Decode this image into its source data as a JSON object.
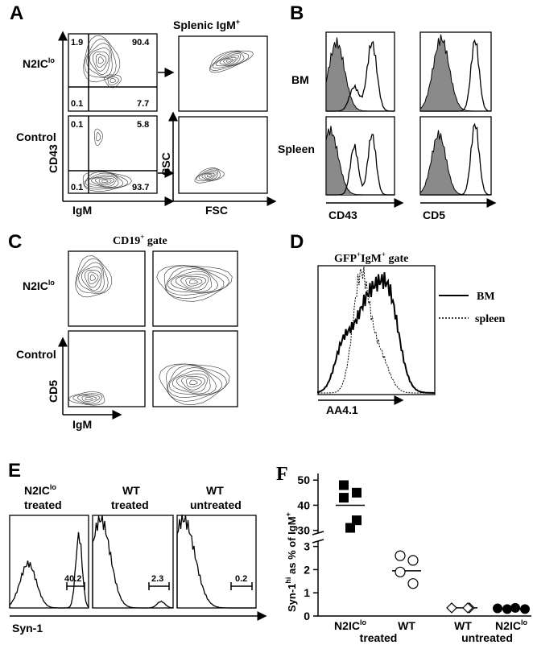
{
  "panel_a": {
    "label": "A",
    "row1": [
      "N2IC",
      "lo"
    ],
    "row2": "Control",
    "y_axis": "CD43",
    "x_axis": "IgM",
    "quadrants_top": [
      1.9,
      90.4,
      0.1,
      7.7
    ],
    "quadrants_bottom": [
      0.1,
      5.8,
      0.1,
      93.7
    ],
    "right_title": [
      "Splenic IgM",
      "+"
    ],
    "right_y": "SSC",
    "right_x": "FSC"
  },
  "panel_b": {
    "label": "B",
    "rows": [
      "BM",
      "Spleen"
    ],
    "x_axes": [
      "CD43",
      "CD5"
    ]
  },
  "panel_c": {
    "label": "C",
    "title": [
      "CD19",
      "+",
      " gate"
    ],
    "row1": [
      "N2IC",
      "lo"
    ],
    "row2": "Control",
    "y_axis": "CD5",
    "x_axis": "IgM"
  },
  "panel_d": {
    "label": "D",
    "title": [
      "GFP",
      "+",
      "IgM",
      "+",
      " gate"
    ],
    "legend": [
      "BM",
      "spleen"
    ],
    "x_axis": "AA4.1"
  },
  "panel_e": {
    "label": "E",
    "columns": [
      {
        "title": [
          "N2IC",
          "lo"
        ],
        "sub": "treated",
        "value": 40.2
      },
      {
        "title": [
          "WT"
        ],
        "sub": "treated",
        "value": 2.3
      },
      {
        "title": [
          "WT"
        ],
        "sub": "untreated",
        "value": 0.2
      }
    ],
    "x_axis": "Syn-1"
  },
  "panel_f": {
    "label": "F",
    "y_label": [
      "Syn-1",
      "hi",
      " as % of IgM",
      "+"
    ],
    "ylim_upper": [
      27,
      52
    ],
    "yticks_upper": [
      30,
      40,
      50
    ],
    "ylim_lower": [
      0,
      3.3
    ],
    "yticks_lower": [
      0,
      1,
      2,
      3
    ],
    "groups": [
      {
        "name": [
          "N2IC",
          "lo"
        ],
        "marker": "square",
        "values": [
          48,
          45,
          43,
          34,
          31
        ],
        "center": 40
      },
      {
        "name": [
          "WT"
        ],
        "marker": "circle-open",
        "values": [
          2.6,
          2.4,
          1.9,
          1.4
        ],
        "center": 1.95
      },
      {
        "name": [
          "WT"
        ],
        "marker": "diamond-open",
        "values": [
          0.35,
          0.35,
          0.35
        ],
        "center": 0.35
      },
      {
        "name": [
          "N2IC",
          "lo"
        ],
        "marker": "circle-filled",
        "values": [
          0.33,
          0.35,
          0.3,
          0.3
        ],
        "center": 0.3
      }
    ],
    "group_labels": [
      "treated",
      "untreated"
    ]
  }
}
